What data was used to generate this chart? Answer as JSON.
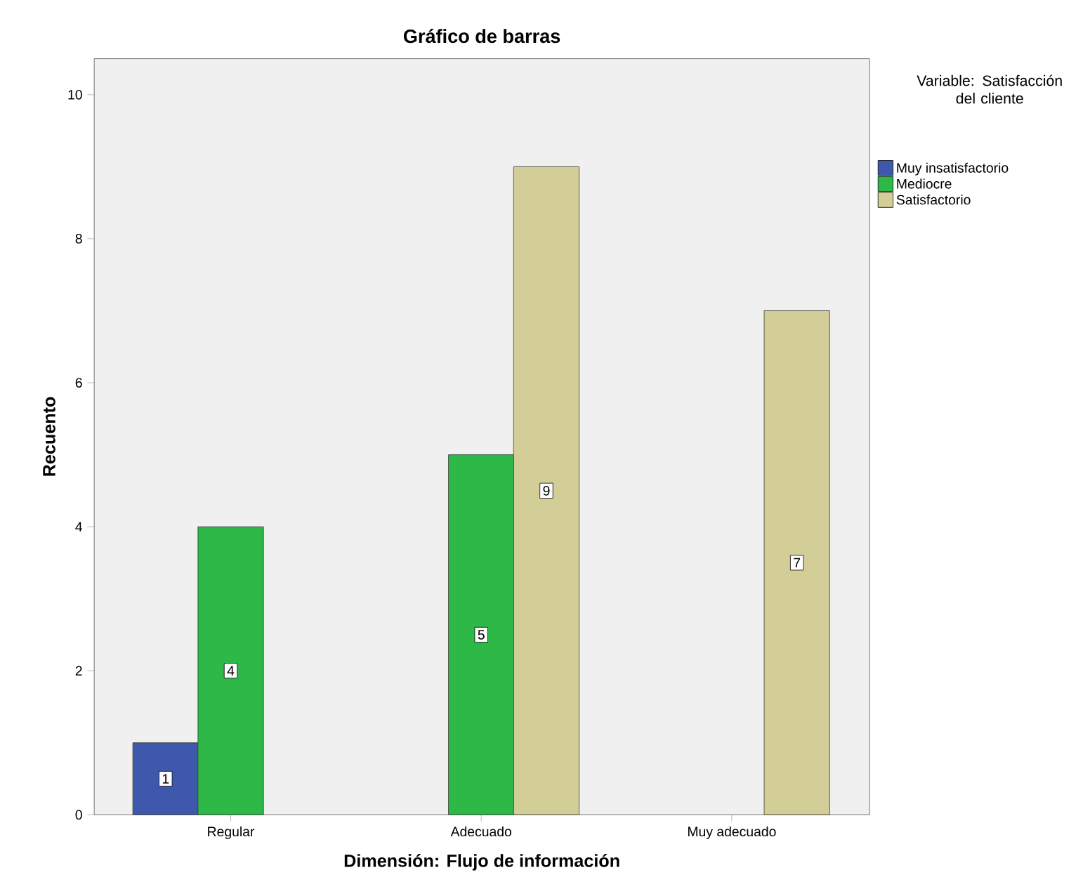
{
  "chart_data": {
    "type": "bar",
    "title": "Gráfico de barras",
    "xlabel": "Dimensión: Flujo de información",
    "ylabel": "Recuento",
    "legend_title": "Variable: Satisfacción del cliente",
    "categories": [
      "Regular",
      "Adecuado",
      "Muy adecuado"
    ],
    "series": [
      {
        "name": "Muy insatisfactorio",
        "color": "#3e58ac",
        "values": [
          1,
          null,
          null
        ]
      },
      {
        "name": "Mediocre",
        "color": "#2eb848",
        "values": [
          4,
          5,
          null
        ]
      },
      {
        "name": "Satisfactorio",
        "color": "#d3ce97",
        "values": [
          null,
          9,
          7
        ]
      }
    ],
    "ylim": [
      0,
      10.5
    ],
    "yticks": [
      0,
      2,
      4,
      6,
      8,
      10
    ],
    "grid": false,
    "legend": "right",
    "data_labels": true
  }
}
